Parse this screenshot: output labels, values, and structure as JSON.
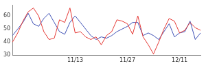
{
  "chart_data": {
    "type": "line",
    "categories": [
      null,
      null,
      null,
      null,
      null,
      null,
      null,
      null,
      null,
      null,
      null,
      null,
      "11/13",
      null,
      null,
      null,
      null,
      null,
      null,
      null,
      null,
      null,
      "11/27",
      null,
      null,
      null,
      null,
      null,
      null,
      null,
      null,
      null,
      "12/11",
      null,
      null,
      null,
      null
    ],
    "series": [
      {
        "color": "#e53935",
        "values": [
          40,
          47,
          56,
          63,
          66,
          60,
          48,
          42,
          43,
          57,
          55,
          66,
          47,
          48,
          44,
          42,
          44,
          38,
          45,
          48,
          57,
          56,
          54,
          46,
          60,
          44,
          38,
          31,
          40,
          50,
          58,
          56,
          47,
          49,
          55,
          51,
          49
        ]
      },
      {
        "color": "#3f51b5",
        "values": [
          45,
          50,
          55,
          62,
          54,
          52,
          58,
          62,
          55,
          48,
          46,
          55,
          60,
          55,
          50,
          45,
          42,
          44,
          43,
          45,
          48,
          50,
          52,
          55,
          55,
          45,
          47,
          45,
          42,
          48,
          54,
          44,
          47,
          48,
          56,
          42,
          47
        ]
      }
    ],
    "ylim": [
      30,
      68
    ],
    "yticks": [
      30,
      40,
      50,
      60
    ],
    "grid": false
  }
}
